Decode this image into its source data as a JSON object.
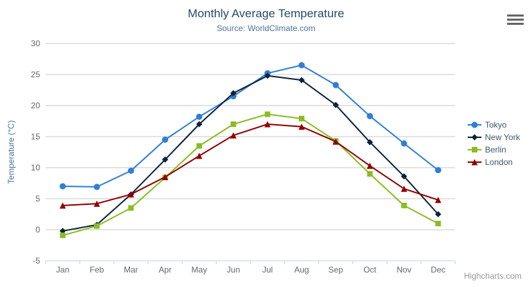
{
  "chart": {
    "title": "Monthly Average Temperature",
    "subtitle": "Source: WorldClimate.com",
    "credit": "Highcharts.com",
    "export_menu_icon": "hamburger-icon"
  },
  "colors": {
    "title": "#274b6d",
    "subtitle": "#4d759e",
    "y_axis_title": "#4d759e",
    "axis_labels": "#666666",
    "grid_line": "#c8c8c8",
    "axis_line": "#c0d0e0",
    "legend_text": "#3e576f",
    "credit": "#999999",
    "background": "#ffffff"
  },
  "chart_data": {
    "type": "line",
    "title": "Monthly Average Temperature",
    "subtitle": "Source: WorldClimate.com",
    "xlabel": "",
    "ylabel": "Temperature (°C)",
    "ylim": [
      -5,
      30
    ],
    "ytick_step": 5,
    "grid": true,
    "legend_position": "right",
    "categories": [
      "Jan",
      "Feb",
      "Mar",
      "Apr",
      "May",
      "Jun",
      "Jul",
      "Aug",
      "Sep",
      "Oct",
      "Nov",
      "Dec"
    ],
    "series": [
      {
        "name": "Tokyo",
        "color": "#2f7ed8",
        "marker": "circle",
        "values": [
          7.0,
          6.9,
          9.5,
          14.5,
          18.2,
          21.5,
          25.2,
          26.5,
          23.3,
          18.3,
          13.9,
          9.6
        ]
      },
      {
        "name": "New York",
        "color": "#0d233a",
        "marker": "diamond",
        "values": [
          -0.2,
          0.8,
          5.7,
          11.3,
          17.0,
          22.0,
          24.8,
          24.1,
          20.1,
          14.1,
          8.6,
          2.5
        ]
      },
      {
        "name": "Berlin",
        "color": "#8bbc21",
        "marker": "square",
        "values": [
          -0.9,
          0.6,
          3.5,
          8.4,
          13.5,
          17.0,
          18.6,
          17.9,
          14.3,
          9.0,
          3.9,
          1.0
        ]
      },
      {
        "name": "London",
        "color": "#910000",
        "marker": "triangle",
        "values": [
          3.9,
          4.2,
          5.7,
          8.5,
          11.9,
          15.2,
          17.0,
          16.6,
          14.2,
          10.3,
          6.6,
          4.8
        ]
      }
    ]
  }
}
